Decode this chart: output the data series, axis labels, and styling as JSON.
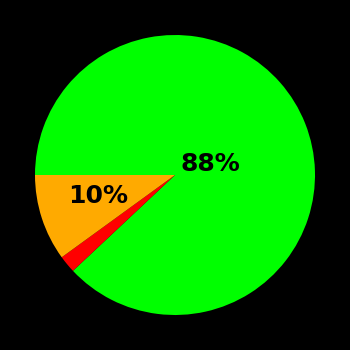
{
  "slices": [
    88,
    2,
    10
  ],
  "colors": [
    "#00ff00",
    "#ff0000",
    "#ffaa00"
  ],
  "labels": [
    "88%",
    "",
    "10%"
  ],
  "label_positions": [
    [
      0.25,
      0.08
    ],
    null,
    [
      -0.55,
      -0.15
    ]
  ],
  "background_color": "#000000",
  "text_color": "#000000",
  "startangle": 180,
  "counterclock": false,
  "fontsize": 18,
  "figsize": [
    3.5,
    3.5
  ],
  "dpi": 100
}
